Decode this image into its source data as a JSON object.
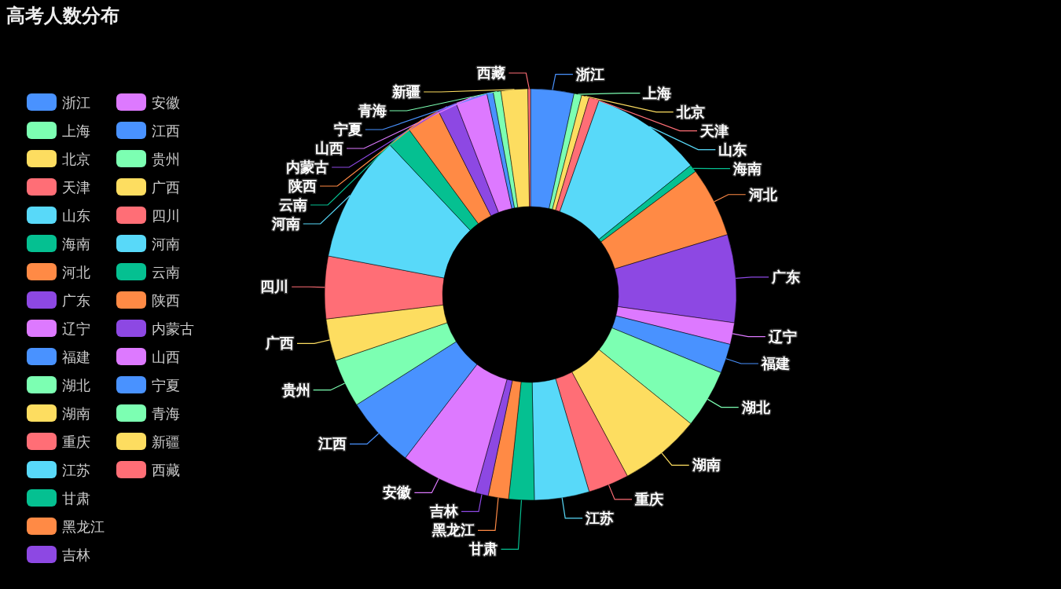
{
  "chart_data": {
    "type": "donut",
    "title": "高考人数分布",
    "legend": "left",
    "categories": [
      "浙江",
      "上海",
      "北京",
      "天津",
      "山东",
      "海南",
      "河北",
      "广东",
      "辽宁",
      "福建",
      "湖北",
      "湖南",
      "重庆",
      "江苏",
      "甘肃",
      "黑龙江",
      "吉林",
      "安徽",
      "江西",
      "贵州",
      "广西",
      "四川",
      "河南",
      "云南",
      "陕西",
      "内蒙古",
      "山西",
      "宁夏",
      "青海",
      "新疆",
      "西藏"
    ],
    "values": [
      3.4,
      0.6,
      0.6,
      0.8,
      8.8,
      0.6,
      5.5,
      6.9,
      1.7,
      2.3,
      4.6,
      6.4,
      3.2,
      4.3,
      2.0,
      1.6,
      1.0,
      6.1,
      5.6,
      3.8,
      3.3,
      4.9,
      10.0,
      1.9,
      2.7,
      1.5,
      2.5,
      0.5,
      0.6,
      2.1,
      0.2
    ],
    "colors": [
      "#4992ff",
      "#7cffb2",
      "#fddd60",
      "#ff6e76",
      "#58d9f9",
      "#05c091",
      "#ff8a45",
      "#8d48e3",
      "#dd79ff",
      "#4992ff",
      "#7cffb2",
      "#fddd60",
      "#ff6e76",
      "#58d9f9",
      "#05c091",
      "#ff8a45",
      "#8d48e3",
      "#dd79ff",
      "#4992ff",
      "#7cffb2",
      "#fddd60",
      "#ff6e76",
      "#58d9f9",
      "#05c091",
      "#ff8a45",
      "#8d48e3",
      "#dd79ff",
      "#4992ff",
      "#7cffb2",
      "#fddd60",
      "#ff6e76"
    ]
  }
}
